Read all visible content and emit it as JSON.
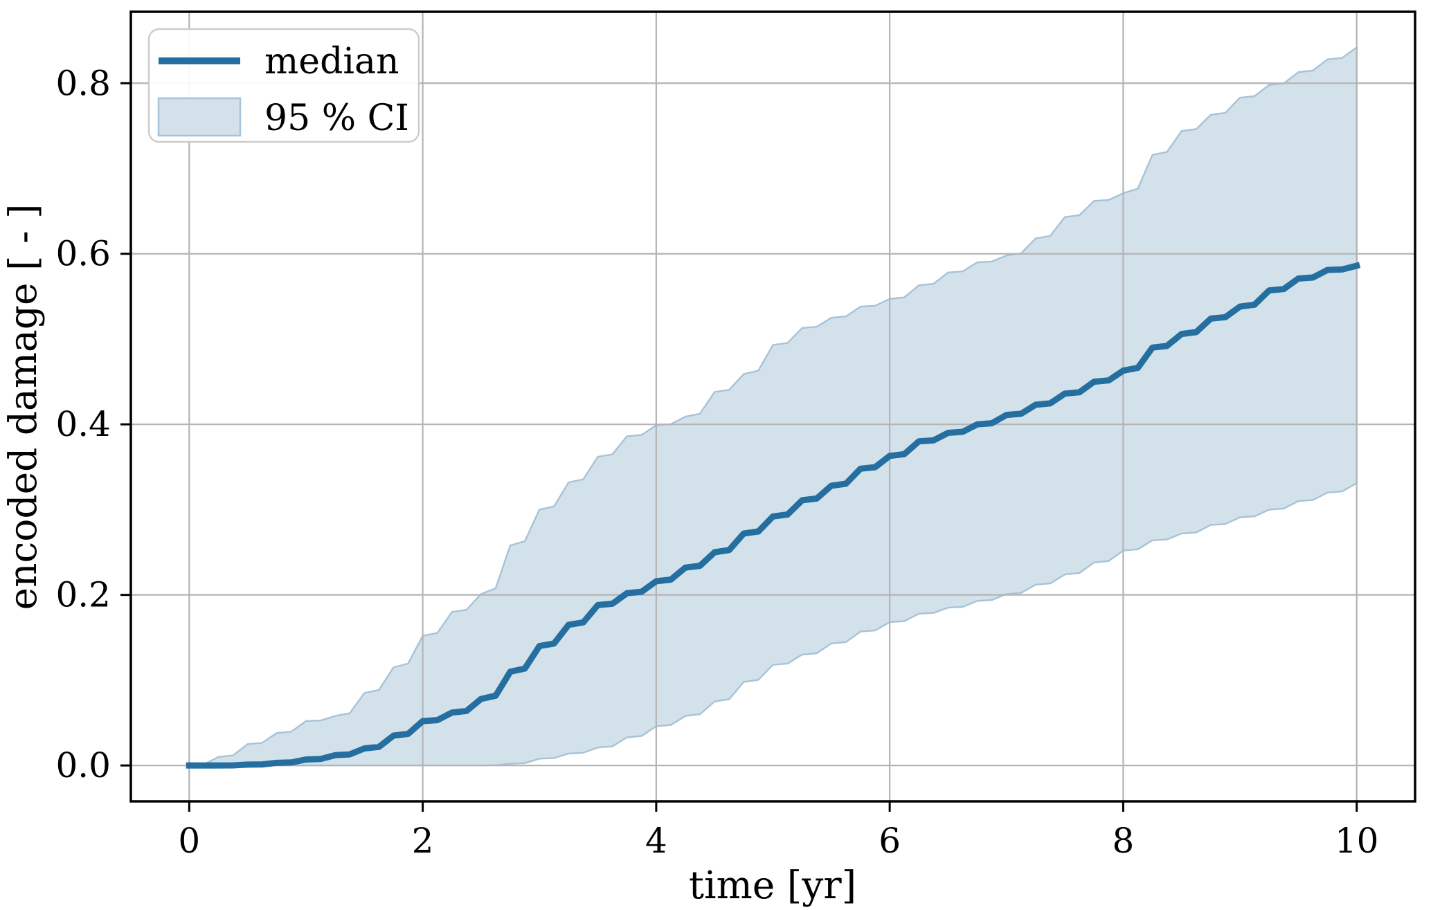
{
  "chart_data": {
    "type": "line",
    "title": "",
    "xlabel": "time [yr]",
    "ylabel": "encoded damage [ - ]",
    "x": [
      0,
      0.25,
      0.5,
      0.75,
      1,
      1.25,
      1.5,
      1.75,
      2,
      2.25,
      2.5,
      2.75,
      3,
      3.25,
      3.5,
      3.75,
      4,
      4.25,
      4.5,
      4.75,
      5,
      5.25,
      5.5,
      5.75,
      6,
      6.25,
      6.5,
      6.75,
      7,
      7.25,
      7.5,
      7.75,
      8,
      8.25,
      8.5,
      8.75,
      9,
      9.25,
      9.5,
      9.75,
      10
    ],
    "series": [
      {
        "name": "median",
        "kind": "line",
        "color": "#246f9f",
        "values": [
          0.0,
          0.0,
          0.001,
          0.003,
          0.007,
          0.012,
          0.02,
          0.035,
          0.052,
          0.062,
          0.078,
          0.11,
          0.14,
          0.165,
          0.188,
          0.202,
          0.216,
          0.232,
          0.25,
          0.272,
          0.292,
          0.311,
          0.328,
          0.348,
          0.363,
          0.38,
          0.39,
          0.4,
          0.411,
          0.423,
          0.436,
          0.45,
          0.463,
          0.49,
          0.506,
          0.524,
          0.538,
          0.557,
          0.571,
          0.581,
          0.586
        ]
      },
      {
        "name": "95 % CI",
        "kind": "band",
        "fill": "#d3e1eb",
        "edge": "#a6c3d7",
        "upper": [
          0.0,
          0.01,
          0.025,
          0.038,
          0.052,
          0.058,
          0.085,
          0.115,
          0.152,
          0.18,
          0.201,
          0.258,
          0.3,
          0.332,
          0.362,
          0.386,
          0.399,
          0.409,
          0.438,
          0.459,
          0.493,
          0.513,
          0.525,
          0.538,
          0.547,
          0.563,
          0.578,
          0.59,
          0.598,
          0.618,
          0.643,
          0.662,
          0.671,
          0.716,
          0.744,
          0.763,
          0.783,
          0.798,
          0.813,
          0.828,
          0.842
        ],
        "lower": [
          0.0,
          0.0,
          0.0,
          0.0,
          0.0,
          0.0,
          0.0,
          0.0,
          0.0,
          0.0,
          0.0,
          0.002,
          0.008,
          0.014,
          0.021,
          0.033,
          0.046,
          0.058,
          0.075,
          0.098,
          0.118,
          0.13,
          0.143,
          0.157,
          0.168,
          0.178,
          0.185,
          0.193,
          0.201,
          0.212,
          0.224,
          0.238,
          0.252,
          0.264,
          0.272,
          0.282,
          0.291,
          0.3,
          0.31,
          0.32,
          0.331
        ]
      }
    ],
    "xticks": {
      "values": [
        0,
        2,
        4,
        6,
        8,
        10
      ],
      "labels": [
        "0",
        "2",
        "4",
        "6",
        "8",
        "10"
      ]
    },
    "yticks": {
      "values": [
        0.0,
        0.2,
        0.4,
        0.6,
        0.8
      ],
      "labels": [
        "0.0",
        "0.2",
        "0.4",
        "0.6",
        "0.8"
      ]
    },
    "xlim": [
      -0.5,
      10.5
    ],
    "ylim": [
      -0.0421,
      0.8838
    ],
    "grid": true,
    "grid_color": "#b4b4b4",
    "spine_color": "#000000",
    "legend": {
      "position": "upper left",
      "items": [
        {
          "label": "median"
        },
        {
          "label": "95 % CI"
        }
      ]
    }
  }
}
